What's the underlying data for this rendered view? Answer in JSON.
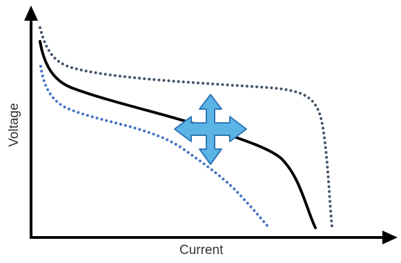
{
  "axes": {
    "x_label": "Current",
    "y_label": "Voltage"
  },
  "curves": [
    {
      "id": "nominal",
      "style": "solid",
      "color": "#000000"
    },
    {
      "id": "upper",
      "style": "dotted",
      "color": "#44546a"
    },
    {
      "id": "lower",
      "style": "dotted",
      "color": "#4472c4"
    }
  ],
  "icon": {
    "name": "move-arrows-icon",
    "fill": "#5bb4e5",
    "stroke": "#2e75b6"
  },
  "colors": {
    "axis": "#000000",
    "background": "#ffffff"
  }
}
